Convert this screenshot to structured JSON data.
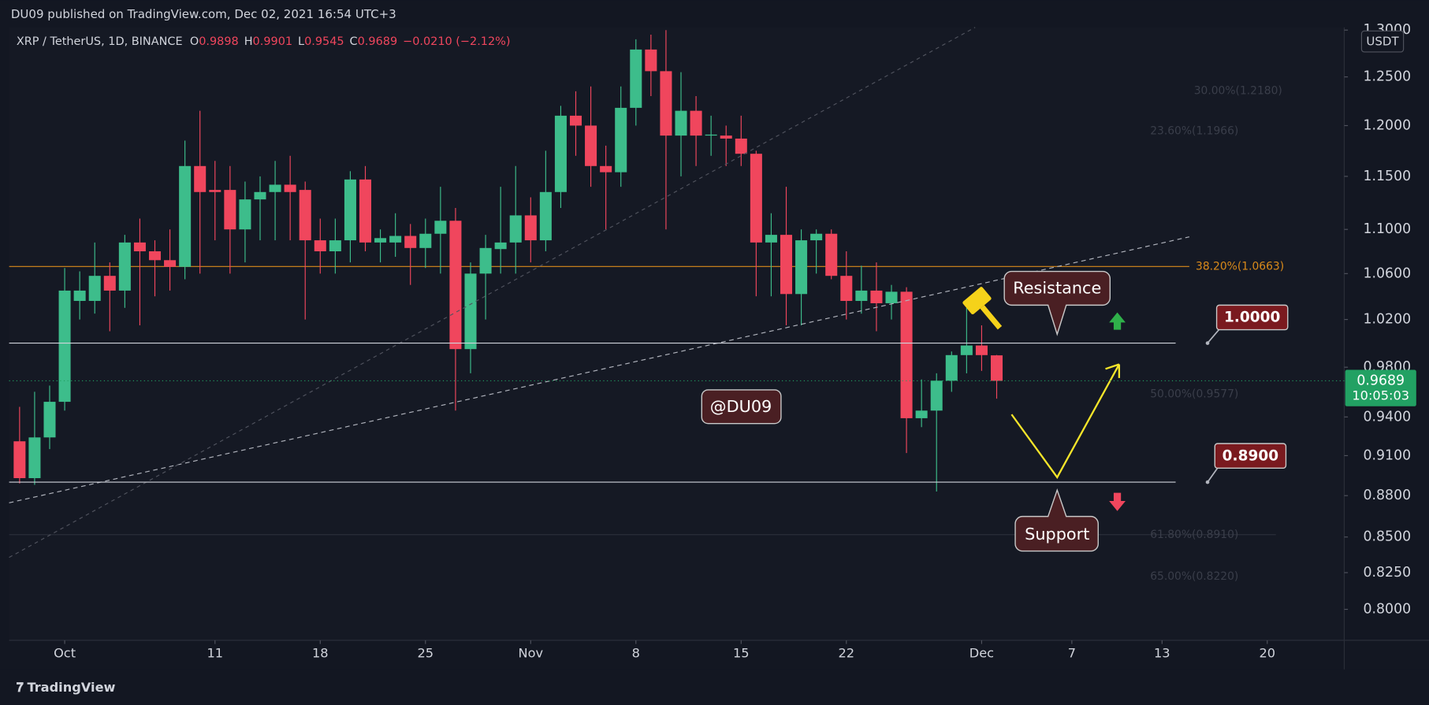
{
  "header": {
    "publisher": "DU09 published on TradingView.com, Dec 02, 2021 16:54 UTC+3",
    "symbol": "XRP / TetherUS, 1D, BINANCE",
    "ohlc_letters": [
      "O",
      "H",
      "L",
      "C"
    ],
    "change": "−0.0210 (−2.12%)",
    "currency": "USDT",
    "countdown": "10:05:03",
    "footer": "TradingView"
  },
  "chart_data": {
    "type": "candlestick",
    "log_scale": true,
    "up_color": "#3dbd8b",
    "down_color": "#f0465d",
    "x": [
      "09-28",
      "09-29",
      "09-30",
      "10-01",
      "10-02",
      "10-03",
      "10-04",
      "10-05",
      "10-06",
      "10-07",
      "10-08",
      "10-09",
      "10-10",
      "10-11",
      "10-12",
      "10-13",
      "10-14",
      "10-15",
      "10-16",
      "10-17",
      "10-18",
      "10-19",
      "10-20",
      "10-21",
      "10-22",
      "10-23",
      "10-24",
      "10-25",
      "10-26",
      "10-27",
      "10-28",
      "10-29",
      "10-30",
      "10-31",
      "11-01",
      "11-02",
      "11-03",
      "11-04",
      "11-05",
      "11-06",
      "11-07",
      "11-08",
      "11-09",
      "11-10",
      "11-11",
      "11-12",
      "11-13",
      "11-14",
      "11-15",
      "11-16",
      "11-17",
      "11-18",
      "11-19",
      "11-20",
      "11-21",
      "11-22",
      "11-23",
      "11-24",
      "11-25",
      "11-26",
      "11-27",
      "11-28",
      "11-29",
      "11-30",
      "12-01",
      "12-02"
    ],
    "open": [
      0.921,
      0.893,
      0.924,
      0.952,
      1.036,
      1.036,
      1.058,
      1.045,
      1.088,
      1.08,
      1.072,
      1.066,
      1.16,
      1.137,
      1.137,
      1.1,
      1.128,
      1.135,
      1.142,
      1.137,
      1.09,
      1.08,
      1.09,
      1.147,
      1.088,
      1.088,
      1.094,
      1.083,
      1.096,
      1.108,
      0.995,
      1.06,
      1.082,
      1.088,
      1.113,
      1.09,
      1.135,
      1.21,
      1.2,
      1.16,
      1.154,
      1.218,
      1.279,
      1.256,
      1.19,
      1.215,
      1.19,
      1.19,
      1.187,
      1.172,
      1.088,
      1.095,
      1.042,
      1.09,
      1.096,
      1.058,
      1.036,
      1.045,
      1.034,
      1.044,
      0.939,
      0.945,
      0.969,
      0.99,
      0.998,
      0.9898
    ],
    "high": [
      0.948,
      0.96,
      0.965,
      1.065,
      1.062,
      1.088,
      1.07,
      1.095,
      1.11,
      1.09,
      1.1,
      1.185,
      1.215,
      1.165,
      1.16,
      1.145,
      1.15,
      1.165,
      1.17,
      1.145,
      1.11,
      1.11,
      1.155,
      1.16,
      1.1,
      1.115,
      1.105,
      1.11,
      1.14,
      1.12,
      1.07,
      1.095,
      1.14,
      1.16,
      1.13,
      1.175,
      1.22,
      1.235,
      1.24,
      1.18,
      1.24,
      1.29,
      1.295,
      1.3,
      1.255,
      1.23,
      1.21,
      1.2,
      1.21,
      1.175,
      1.115,
      1.14,
      1.1,
      1.1,
      1.1,
      1.08,
      1.067,
      1.07,
      1.05,
      1.048,
      0.97,
      0.975,
      0.993,
      1.03,
      1.015,
      0.9901
    ],
    "low": [
      0.889,
      0.888,
      0.915,
      0.945,
      1.02,
      1.025,
      1.01,
      1.03,
      1.015,
      1.04,
      1.045,
      1.055,
      1.06,
      1.09,
      1.06,
      1.07,
      1.09,
      1.09,
      1.09,
      1.02,
      1.06,
      1.06,
      1.07,
      1.08,
      1.07,
      1.075,
      1.05,
      1.065,
      1.06,
      0.945,
      0.975,
      1.02,
      1.06,
      1.06,
      1.07,
      1.08,
      1.12,
      1.17,
      1.14,
      1.1,
      1.14,
      1.2,
      1.23,
      1.1,
      1.15,
      1.16,
      1.17,
      1.16,
      1.16,
      1.04,
      1.04,
      1.015,
      1.015,
      1.06,
      1.055,
      1.02,
      1.025,
      1.01,
      1.02,
      0.912,
      0.932,
      0.883,
      0.96,
      0.975,
      0.977,
      0.9545
    ],
    "close": [
      0.893,
      0.924,
      0.952,
      1.045,
      1.045,
      1.058,
      1.045,
      1.088,
      1.08,
      1.072,
      1.066,
      1.16,
      1.135,
      1.135,
      1.1,
      1.128,
      1.135,
      1.142,
      1.135,
      1.09,
      1.08,
      1.09,
      1.147,
      1.088,
      1.092,
      1.094,
      1.083,
      1.096,
      1.108,
      0.995,
      1.06,
      1.083,
      1.088,
      1.113,
      1.09,
      1.135,
      1.21,
      1.2,
      1.16,
      1.154,
      1.218,
      1.279,
      1.256,
      1.19,
      1.215,
      1.19,
      1.191,
      1.187,
      1.172,
      1.088,
      1.095,
      1.042,
      1.09,
      1.096,
      1.058,
      1.036,
      1.045,
      1.034,
      1.044,
      0.939,
      0.945,
      0.969,
      0.99,
      0.998,
      0.99,
      0.9689
    ],
    "xlim": [
      "09-27",
      "12-25"
    ],
    "xticks": [
      {
        "value": "10-01",
        "label": "Oct"
      },
      {
        "value": "10-11",
        "label": "11"
      },
      {
        "value": "10-18",
        "label": "18"
      },
      {
        "value": "10-25",
        "label": "25"
      },
      {
        "value": "11-01",
        "label": "Nov"
      },
      {
        "value": "11-08",
        "label": "8"
      },
      {
        "value": "11-15",
        "label": "15"
      },
      {
        "value": "11-22",
        "label": "22"
      },
      {
        "value": "12-01",
        "label": "Dec"
      },
      {
        "value": "12-07",
        "label": "7"
      },
      {
        "value": "12-13",
        "label": "13"
      },
      {
        "value": "12-20",
        "label": "20"
      }
    ],
    "ylim": [
      0.7795,
      1.303
    ],
    "yticks": [
      {
        "value": 0.8,
        "label": "0.8000"
      },
      {
        "value": 0.825,
        "label": "0.8250"
      },
      {
        "value": 0.85,
        "label": "0.8500"
      },
      {
        "value": 0.88,
        "label": "0.8800"
      },
      {
        "value": 0.91,
        "label": "0.9100"
      },
      {
        "value": 0.94,
        "label": "0.9400"
      },
      {
        "value": 0.98,
        "label": "0.9800"
      },
      {
        "value": 1.02,
        "label": "1.0200"
      },
      {
        "value": 1.06,
        "label": "1.0600"
      },
      {
        "value": 1.1,
        "label": "1.1000"
      },
      {
        "value": 1.15,
        "label": "1.1500"
      },
      {
        "value": 1.2,
        "label": "1.2000"
      },
      {
        "value": 1.25,
        "label": "1.2500"
      },
      {
        "value": 1.3,
        "label": "1.3000"
      }
    ],
    "levels": [
      {
        "value": 1.0,
        "label": "1.0000"
      },
      {
        "value": 0.89,
        "label": "0.8900"
      }
    ],
    "fib_line": {
      "value": 1.0663,
      "label": "38.20%(1.0663)",
      "color": "#d98a1a"
    },
    "faint_labels": [
      "30.00%(1.2180)",
      "23.60%(1.1966)",
      "50.00%(0.9577)",
      "61.80%(0.8910)",
      "65.00%(0.8220)"
    ],
    "annotations": [
      "Resistance",
      "Support",
      "@DU09"
    ]
  }
}
